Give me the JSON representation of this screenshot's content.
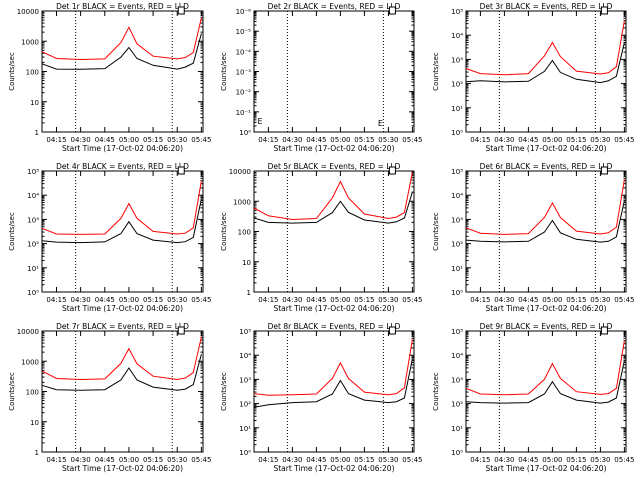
{
  "colors": {
    "background": "#ffffff",
    "events": "#000000",
    "lld": "#ff0000",
    "axes": "#000000"
  },
  "chart_data": [
    {
      "type": "line",
      "title": "Det 1r BLACK = Events, RED = LLD",
      "xlabel": "Start Time (17-Oct-02 04:06:20)",
      "ylabel": "Counts/sec",
      "xticks": [
        "04:15",
        "04:30",
        "04:45",
        "05:00",
        "05:15",
        "05:30",
        "05:45"
      ],
      "yscale": "log",
      "ylim": [
        1,
        10000
      ],
      "ytick_style": "plain",
      "yticks": [
        "1",
        "10",
        "100",
        "1000",
        "10000"
      ],
      "x": [
        "04:06",
        "04:15",
        "04:30",
        "04:45",
        "04:55",
        "05:00",
        "05:05",
        "05:15",
        "05:30",
        "05:35",
        "05:40",
        "05:45"
      ],
      "series": [
        {
          "name": "Events",
          "values": [
            180,
            120,
            118,
            125,
            300,
            620,
            270,
            160,
            120,
            140,
            190,
            1800
          ]
        },
        {
          "name": "LLD",
          "values": [
            450,
            270,
            250,
            260,
            900,
            2900,
            820,
            320,
            260,
            290,
            420,
            6000
          ]
        }
      ]
    },
    {
      "type": "line",
      "title": "Det 2r BLACK = Events, RED = LLD",
      "xlabel": "Start Time (17-Oct-02 04:06:20)",
      "ylabel": "Counts/sec",
      "xticks": [
        "04:15",
        "04:30",
        "04:45",
        "05:00",
        "05:15",
        "05:30",
        "05:45"
      ],
      "yscale": "log",
      "ylim": [
        1,
        1e-06
      ],
      "ytick_style": "exp",
      "yticks": [
        "10⁰",
        "10⁻¹",
        "10⁻²",
        "10⁻³",
        "10⁻⁴",
        "10⁻⁵",
        "10⁻⁶"
      ],
      "x": [],
      "series": [],
      "annotations": [
        "E"
      ]
    },
    {
      "type": "line",
      "title": "Det 3r BLACK = Events, RED = LLD",
      "xlabel": "Start Time (17-Oct-02 04:06:20)",
      "ylabel": "Counts/sec",
      "xticks": [
        "04:15",
        "04:30",
        "04:45",
        "05:00",
        "05:15",
        "05:30",
        "05:45"
      ],
      "yscale": "log",
      "ylim": [
        1,
        100000
      ],
      "ytick_style": "exp",
      "yticks": [
        "10⁰",
        "10¹",
        "10²",
        "10³",
        "10⁴",
        "10⁵"
      ],
      "x": [
        "04:06",
        "04:15",
        "04:30",
        "04:45",
        "04:55",
        "05:00",
        "05:05",
        "05:15",
        "05:30",
        "05:35",
        "05:40",
        "05:45"
      ],
      "series": [
        {
          "name": "Events",
          "values": [
            120,
            130,
            118,
            125,
            320,
            900,
            290,
            150,
            110,
            130,
            200,
            5000
          ]
        },
        {
          "name": "LLD",
          "values": [
            420,
            260,
            230,
            260,
            1400,
            5000,
            1300,
            330,
            250,
            280,
            500,
            40000
          ]
        }
      ]
    },
    {
      "type": "line",
      "title": "Det 4r BLACK = Events, RED = LLD",
      "xlabel": "Start Time (17-Oct-02 04:06:20)",
      "ylabel": "Counts/sec",
      "xticks": [
        "04:15",
        "04:30",
        "04:45",
        "05:00",
        "05:15",
        "05:30",
        "05:45"
      ],
      "yscale": "log",
      "ylim": [
        1,
        100000
      ],
      "ytick_style": "exp",
      "yticks": [
        "10⁰",
        "10¹",
        "10²",
        "10³",
        "10⁴",
        "10⁵"
      ],
      "x": [
        "04:06",
        "04:15",
        "04:30",
        "04:45",
        "04:55",
        "05:00",
        "05:05",
        "05:15",
        "05:30",
        "05:35",
        "05:40",
        "05:45"
      ],
      "series": [
        {
          "name": "Events",
          "values": [
            130,
            115,
            110,
            118,
            260,
            800,
            260,
            140,
            110,
            120,
            180,
            7000
          ]
        },
        {
          "name": "LLD",
          "values": [
            430,
            250,
            240,
            250,
            1100,
            4500,
            1100,
            320,
            250,
            270,
            450,
            40000
          ]
        }
      ]
    },
    {
      "type": "line",
      "title": "Det 5r BLACK = Events, RED = LLD",
      "xlabel": "Start Time (17-Oct-02 04:06:20)",
      "ylabel": "Counts/sec",
      "xticks": [
        "04:15",
        "04:30",
        "04:45",
        "05:00",
        "05:15",
        "05:30",
        "05:45"
      ],
      "yscale": "log",
      "ylim": [
        1,
        10000
      ],
      "ytick_style": "plain",
      "yticks": [
        "1",
        "10",
        "100",
        "1000",
        "10000"
      ],
      "x": [
        "04:06",
        "04:15",
        "04:30",
        "04:45",
        "04:55",
        "05:00",
        "05:05",
        "05:15",
        "05:30",
        "05:35",
        "05:40",
        "05:45"
      ],
      "series": [
        {
          "name": "Events",
          "values": [
            280,
            200,
            190,
            200,
            420,
            1000,
            430,
            240,
            190,
            210,
            280,
            2000
          ]
        },
        {
          "name": "LLD",
          "values": [
            600,
            330,
            250,
            270,
            1300,
            4500,
            1300,
            380,
            270,
            300,
            420,
            9000
          ]
        }
      ]
    },
    {
      "type": "line",
      "title": "Det 6r BLACK = Events, RED = LLD",
      "xlabel": "Start Time (17-Oct-02 04:06:20)",
      "ylabel": "Counts/sec",
      "xticks": [
        "04:15",
        "04:30",
        "04:45",
        "05:00",
        "05:15",
        "05:30",
        "05:45"
      ],
      "yscale": "log",
      "ylim": [
        1,
        100000
      ],
      "ytick_style": "exp",
      "yticks": [
        "10⁰",
        "10¹",
        "10²",
        "10³",
        "10⁴",
        "10⁵"
      ],
      "x": [
        "04:06",
        "04:15",
        "04:30",
        "04:45",
        "04:55",
        "05:00",
        "05:05",
        "05:15",
        "05:30",
        "05:35",
        "05:40",
        "05:45"
      ],
      "series": [
        {
          "name": "Events",
          "values": [
            140,
            125,
            118,
            125,
            300,
            900,
            280,
            150,
            115,
            125,
            190,
            6000
          ]
        },
        {
          "name": "LLD",
          "values": [
            450,
            270,
            240,
            260,
            1200,
            4800,
            1200,
            330,
            250,
            280,
            480,
            45000
          ]
        }
      ]
    },
    {
      "type": "line",
      "title": "Det 7r BLACK = Events, RED = LLD",
      "xlabel": "Start Time (17-Oct-02 04:06:20)",
      "ylabel": "Counts/sec",
      "xticks": [
        "04:15",
        "04:30",
        "04:45",
        "05:00",
        "05:15",
        "05:30",
        "05:45"
      ],
      "yscale": "log",
      "ylim": [
        1,
        10000
      ],
      "ytick_style": "plain",
      "yticks": [
        "1",
        "10",
        "100",
        "1000",
        "10000"
      ],
      "x": [
        "04:06",
        "04:15",
        "04:30",
        "04:45",
        "04:55",
        "05:00",
        "05:05",
        "05:15",
        "05:30",
        "05:35",
        "05:40",
        "05:45"
      ],
      "series": [
        {
          "name": "Events",
          "values": [
            160,
            115,
            110,
            115,
            240,
            600,
            240,
            140,
            110,
            120,
            170,
            1700
          ]
        },
        {
          "name": "LLD",
          "values": [
            480,
            270,
            250,
            260,
            850,
            2600,
            820,
            320,
            250,
            280,
            420,
            6500
          ]
        }
      ]
    },
    {
      "type": "line",
      "title": "Det 8r BLACK = Events, RED = LLD",
      "xlabel": "Start Time (17-Oct-02 04:06:20)",
      "ylabel": "Counts/sec",
      "xticks": [
        "04:15",
        "04:30",
        "04:45",
        "05:00",
        "05:15",
        "05:30",
        "05:45"
      ],
      "yscale": "log",
      "ylim": [
        1,
        100000
      ],
      "ytick_style": "exp",
      "yticks": [
        "10⁰",
        "10¹",
        "10²",
        "10³",
        "10⁴",
        "10⁵"
      ],
      "x": [
        "04:06",
        "04:15",
        "04:30",
        "04:45",
        "04:55",
        "05:00",
        "05:05",
        "05:15",
        "05:30",
        "05:35",
        "05:40",
        "05:45"
      ],
      "series": [
        {
          "name": "Events",
          "values": [
            70,
            90,
            110,
            120,
            250,
            900,
            260,
            140,
            110,
            120,
            170,
            7000
          ]
        },
        {
          "name": "LLD",
          "values": [
            260,
            220,
            230,
            250,
            1100,
            4800,
            1100,
            300,
            230,
            260,
            450,
            45000
          ]
        }
      ]
    },
    {
      "type": "line",
      "title": "Det 9r BLACK = Events, RED = LLD",
      "xlabel": "Start Time (17-Oct-02 04:06:20)",
      "ylabel": "Counts/sec",
      "xticks": [
        "04:15",
        "04:30",
        "04:45",
        "05:00",
        "05:15",
        "05:30",
        "05:45"
      ],
      "yscale": "log",
      "ylim": [
        1,
        100000
      ],
      "ytick_style": "exp",
      "yticks": [
        "10⁰",
        "10¹",
        "10²",
        "10³",
        "10⁴",
        "10⁵"
      ],
      "x": [
        "04:06",
        "04:15",
        "04:30",
        "04:45",
        "04:55",
        "05:00",
        "05:05",
        "05:15",
        "05:30",
        "05:35",
        "05:40",
        "05:45"
      ],
      "series": [
        {
          "name": "Events",
          "values": [
            120,
            110,
            105,
            110,
            250,
            800,
            260,
            140,
            105,
            115,
            170,
            6000
          ]
        },
        {
          "name": "LLD",
          "values": [
            430,
            250,
            230,
            250,
            1000,
            4500,
            1100,
            310,
            240,
            260,
            430,
            40000
          ]
        }
      ]
    }
  ]
}
